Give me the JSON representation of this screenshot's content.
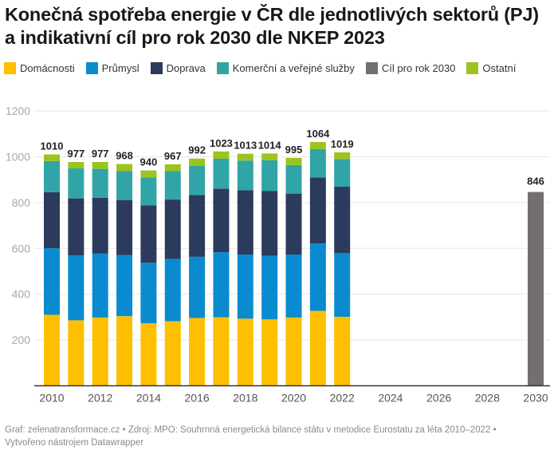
{
  "header": {
    "title_line1": "Konečná spotřeba energie v ČR dle jednotlivých sektorů (PJ)",
    "title_line2": "a indikativní cíl pro rok 2030 dle NKEP 2023"
  },
  "legend": [
    {
      "label": "Domácnosti",
      "color": "#fdbf00"
    },
    {
      "label": "Průmysl",
      "color": "#0a8bd0"
    },
    {
      "label": "Doprava",
      "color": "#2c3a5d"
    },
    {
      "label": "Komerční a veřejné služby",
      "color": "#30a4a6"
    },
    {
      "label": "Cíl pro rok 2030",
      "color": "#736f6e"
    },
    {
      "label": "Ostatní",
      "color": "#9bc41e"
    }
  ],
  "footer": {
    "line1": "Graf: zelenatransformace.cz • Zdroj: MPO: Souhrnná energetická bilance státu v metodice Eurostatu za léta 2010–2022 •",
    "line2": "Vytvořeno nástrojem Datawrapper"
  },
  "chart_data": {
    "type": "bar",
    "stacked": true,
    "title": "Konečná spotřeba energie v ČR dle jednotlivých sektorů (PJ) a indikativní cíl pro rok 2030 dle NKEP 2023",
    "xlabel": "",
    "ylabel": "",
    "ylim": [
      0,
      1200
    ],
    "xlim": [
      2010,
      2030
    ],
    "yticks": [
      200,
      400,
      600,
      800,
      1000,
      1200
    ],
    "xticks": [
      2010,
      2012,
      2014,
      2016,
      2018,
      2020,
      2022,
      2024,
      2026,
      2028,
      2030
    ],
    "grid": true,
    "legend_position": "top-left",
    "categories": [
      2010,
      2011,
      2012,
      2013,
      2014,
      2015,
      2016,
      2017,
      2018,
      2019,
      2020,
      2021,
      2022
    ],
    "series": [
      {
        "name": "Domácnosti",
        "color": "#fdbf00",
        "values": [
          310,
          286,
          298,
          304,
          273,
          282,
          296,
          299,
          293,
          290,
          298,
          327,
          301
        ]
      },
      {
        "name": "Průmysl",
        "color": "#0a8bd0",
        "values": [
          290,
          283,
          279,
          267,
          264,
          272,
          267,
          284,
          280,
          278,
          275,
          294,
          279
        ]
      },
      {
        "name": "Doprava",
        "color": "#2c3a5d",
        "values": [
          245,
          249,
          244,
          240,
          251,
          259,
          270,
          277,
          281,
          283,
          266,
          288,
          289
        ]
      },
      {
        "name": "Komerční a veřejné služby",
        "color": "#30a4a6",
        "values": [
          136,
          131,
          126,
          126,
          121,
          124,
          128,
          131,
          129,
          134,
          125,
          124,
          121
        ]
      },
      {
        "name": "Ostatní",
        "color": "#9bc41e",
        "values": [
          29,
          28,
          30,
          31,
          31,
          30,
          31,
          32,
          30,
          29,
          31,
          31,
          29
        ]
      }
    ],
    "totals": [
      1010,
      977,
      977,
      968,
      940,
      967,
      992,
      1023,
      1013,
      1014,
      995,
      1064,
      1019
    ],
    "target": {
      "name": "Cíl pro rok 2030",
      "year": 2030,
      "value": 846,
      "color": "#736f6e"
    }
  }
}
